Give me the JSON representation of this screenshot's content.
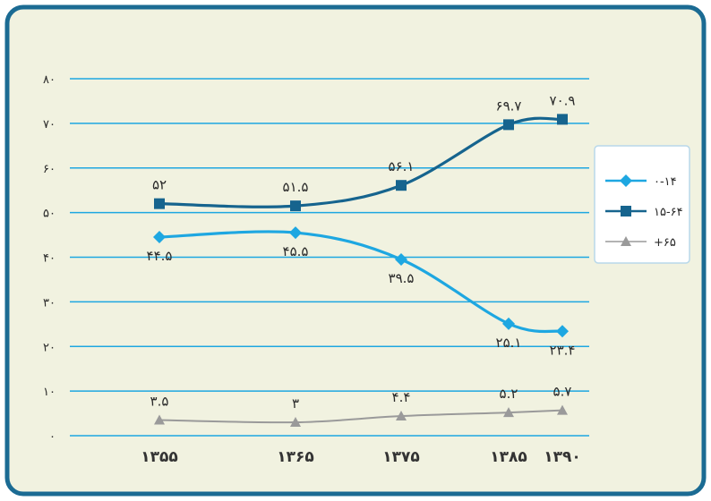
{
  "chart_data": {
    "type": "line",
    "title": "",
    "xlabel": "",
    "ylabel": "",
    "categories": [
      "۱۳۵۵",
      "۱۳۶۵",
      "۱۳۷۵",
      "۱۳۸۵",
      "۱۳۹۰"
    ],
    "x": [
      1355,
      1365,
      1375,
      1385,
      1390
    ],
    "ylim": [
      0,
      80
    ],
    "yticks": [
      0,
      10,
      20,
      30,
      40,
      50,
      60,
      70,
      80
    ],
    "ytick_labels": [
      "۰",
      "۱۰",
      "۲۰",
      "۳۰",
      "۴۰",
      "۵۰",
      "۶۰",
      "۷۰",
      "۸۰"
    ],
    "grid": true,
    "legend_position": "right",
    "series": [
      {
        "name": "۰-۱۴",
        "values": [
          44.5,
          45.5,
          39.5,
          25.1,
          23.4
        ],
        "labels": [
          "۴۴.۵",
          "۴۵.۵",
          "۳۹.۵",
          "۲۵.۱",
          "۲۳.۴"
        ],
        "label_position": "below",
        "color": "#1ea7e1",
        "marker": "diamond"
      },
      {
        "name": "۱۵-۶۴",
        "values": [
          52,
          51.5,
          56.1,
          69.7,
          70.9
        ],
        "labels": [
          "۵۲",
          "۵۱.۵",
          "۵۶.۱",
          "۶۹.۷",
          "۷۰.۹"
        ],
        "label_position": "above",
        "color": "#16648e",
        "marker": "square"
      },
      {
        "name": "+۶۵",
        "values": [
          3.5,
          3,
          4.4,
          5.2,
          5.7
        ],
        "labels": [
          "۳.۵",
          "۳",
          "۴.۴",
          "۵.۲",
          "۵.۷"
        ],
        "label_position": "above",
        "color": "#9a9a9a",
        "marker": "triangle"
      }
    ]
  },
  "colors": {
    "frame_border": "#1b6b93",
    "panel_background": "#f1f2e0",
    "grid_line": "#1ea7e1",
    "text": "#2a2a2a"
  }
}
